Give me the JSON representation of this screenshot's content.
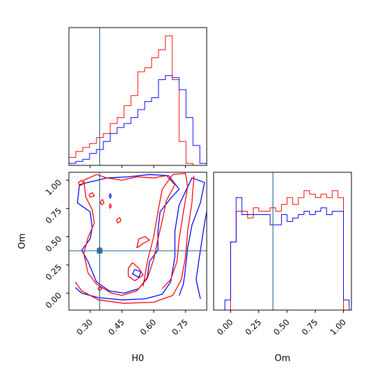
{
  "chart_data": {
    "type": "corner",
    "colors": {
      "red": "#ff0000",
      "blue": "#0000ff",
      "truth": "#2d6e9a",
      "axes": "#000000"
    },
    "axes_labels": {
      "x_bottom_left": "H0",
      "x_bottom_right": "Om",
      "y_middle_left": "Om"
    },
    "truths": {
      "H0": 0.345,
      "Om": 0.375
    },
    "ranges": {
      "H0": [
        0.2,
        0.85
      ],
      "Om": [
        -0.15,
        1.07
      ]
    },
    "ticks": {
      "H0": [
        0.3,
        0.45,
        0.6,
        0.75
      ],
      "H0_labels": [
        "0.30",
        "0.45",
        "0.60",
        "0.75"
      ],
      "Om": [
        0.0,
        0.25,
        0.5,
        0.75,
        1.0
      ],
      "Om_labels": [
        "0.00",
        "0.25",
        "0.50",
        "0.75",
        "1.00"
      ]
    },
    "hist_H0": {
      "edges": [
        0.2,
        0.2325,
        0.265,
        0.2975,
        0.33,
        0.3625,
        0.395,
        0.4275,
        0.46,
        0.4925,
        0.525,
        0.5575,
        0.59,
        0.6225,
        0.655,
        0.6875,
        0.72,
        0.7525,
        0.785,
        0.8175,
        0.85
      ],
      "series": [
        {
          "color": "red",
          "values": [
            4,
            7,
            9,
            11,
            14,
            16,
            21,
            24,
            30,
            35,
            47,
            49,
            54,
            58,
            65,
            43,
            12,
            1,
            0,
            0
          ]
        },
        {
          "color": "blue",
          "values": [
            1,
            2,
            3,
            6,
            8,
            12,
            16,
            19,
            21,
            24,
            28,
            32,
            34,
            43,
            45,
            44,
            38,
            24,
            10,
            1
          ]
        }
      ]
    },
    "hist_Om": {
      "edges": [
        -0.05,
        0.0,
        0.05,
        0.1,
        0.15,
        0.2,
        0.25,
        0.3,
        0.35,
        0.4,
        0.45,
        0.5,
        0.55,
        0.6,
        0.65,
        0.7,
        0.75,
        0.8,
        0.85,
        0.9,
        0.95,
        1.0,
        1.05
      ],
      "series": [
        {
          "color": "red",
          "values": [
            0,
            20,
            29,
            29,
            27,
            30,
            29,
            29,
            30,
            29,
            31,
            33,
            31,
            33,
            35,
            34,
            33,
            34,
            33,
            35,
            33,
            0
          ]
        },
        {
          "color": "blue",
          "values": [
            3,
            20,
            33,
            28,
            28,
            28,
            28,
            28,
            25,
            25,
            28,
            26,
            27,
            28,
            29,
            28,
            29,
            30,
            28,
            29,
            29,
            3
          ]
        }
      ]
    },
    "contours": {
      "red": [
        [
          [
            0.38,
            1.02
          ],
          [
            0.33,
            1.05
          ],
          [
            0.27,
            1.0
          ],
          [
            0.28,
            0.85
          ],
          [
            0.31,
            0.74
          ],
          [
            0.32,
            0.62
          ],
          [
            0.29,
            0.49
          ],
          [
            0.27,
            0.35
          ],
          [
            0.29,
            0.18
          ],
          [
            0.33,
            0.08
          ],
          [
            0.4,
            0.0
          ],
          [
            0.45,
            -0.02
          ],
          [
            0.52,
            0.02
          ],
          [
            0.57,
            0.13
          ],
          [
            0.6,
            0.3
          ],
          [
            0.62,
            0.48
          ],
          [
            0.64,
            0.64
          ],
          [
            0.66,
            0.82
          ],
          [
            0.7,
            0.96
          ],
          [
            0.66,
            1.04
          ],
          [
            0.6,
            1.02
          ],
          [
            0.52,
            1.03
          ],
          [
            0.45,
            1.0
          ],
          [
            0.38,
            1.02
          ]
        ],
        [
          [
            0.55,
            0.06
          ],
          [
            0.57,
            0.28
          ],
          [
            0.6,
            0.5
          ],
          [
            0.62,
            0.72
          ],
          [
            0.64,
            0.92
          ],
          [
            0.69,
            1.05
          ],
          [
            0.75,
            1.06
          ],
          [
            0.76,
            0.94
          ],
          [
            0.74,
            0.72
          ],
          [
            0.72,
            0.48
          ],
          [
            0.71,
            0.28
          ],
          [
            0.68,
            0.12
          ],
          [
            0.64,
            0.04
          ]
        ],
        [
          [
            0.23,
            0.1
          ],
          [
            0.26,
            0.02
          ],
          [
            0.34,
            -0.06
          ],
          [
            0.46,
            -0.09
          ],
          [
            0.6,
            -0.08
          ],
          [
            0.69,
            -0.02
          ],
          [
            0.73,
            0.12
          ],
          [
            0.75,
            0.32
          ],
          [
            0.76,
            0.55
          ],
          [
            0.78,
            0.8
          ],
          [
            0.79,
            1.04
          ]
        ],
        [
          [
            0.52,
            0.4
          ],
          [
            0.55,
            0.44
          ],
          [
            0.58,
            0.47
          ],
          [
            0.56,
            0.5
          ],
          [
            0.53,
            0.48
          ],
          [
            0.52,
            0.4
          ]
        ],
        [
          [
            0.5,
            0.27
          ],
          [
            0.53,
            0.22
          ],
          [
            0.55,
            0.16
          ],
          [
            0.51,
            0.11
          ],
          [
            0.48,
            0.15
          ],
          [
            0.48,
            0.22
          ],
          [
            0.5,
            0.27
          ]
        ],
        [
          [
            0.43,
            0.62
          ],
          [
            0.445,
            0.64
          ],
          [
            0.44,
            0.67
          ],
          [
            0.425,
            0.65
          ],
          [
            0.43,
            0.62
          ]
        ],
        [
          [
            0.355,
            0.78
          ],
          [
            0.365,
            0.8
          ],
          [
            0.358,
            0.83
          ],
          [
            0.348,
            0.8
          ],
          [
            0.355,
            0.78
          ]
        ],
        [
          [
            0.3,
            0.85
          ],
          [
            0.32,
            0.86
          ],
          [
            0.31,
            0.89
          ],
          [
            0.295,
            0.87
          ],
          [
            0.3,
            0.85
          ]
        ],
        [
          [
            0.25,
            0.95
          ],
          [
            0.27,
            0.97
          ],
          [
            0.26,
            1.0
          ],
          [
            0.245,
            0.98
          ],
          [
            0.25,
            0.95
          ]
        ],
        [
          [
            0.345,
            0.02
          ],
          [
            0.355,
            0.04
          ],
          [
            0.345,
            0.06
          ],
          [
            0.337,
            0.04
          ],
          [
            0.345,
            0.02
          ]
        ],
        [
          [
            0.345,
            0.37
          ],
          [
            0.352,
            0.39
          ],
          [
            0.345,
            0.41
          ],
          [
            0.338,
            0.39
          ],
          [
            0.345,
            0.37
          ]
        ],
        [
          [
            0.395,
            0.75
          ],
          [
            0.4,
            0.77
          ],
          [
            0.395,
            0.79
          ],
          [
            0.39,
            0.77
          ],
          [
            0.395,
            0.75
          ]
        ]
      ],
      "blue": [
        [
          [
            0.29,
            0.98
          ],
          [
            0.25,
            0.96
          ],
          [
            0.24,
            0.8
          ],
          [
            0.3,
            0.72
          ],
          [
            0.31,
            0.58
          ],
          [
            0.3,
            0.48
          ],
          [
            0.26,
            0.38
          ],
          [
            0.29,
            0.28
          ],
          [
            0.33,
            0.1
          ],
          [
            0.39,
            0.02
          ],
          [
            0.46,
            0.0
          ],
          [
            0.53,
            0.04
          ],
          [
            0.57,
            0.14
          ],
          [
            0.58,
            0.28
          ],
          [
            0.62,
            0.38
          ],
          [
            0.62,
            0.55
          ],
          [
            0.63,
            0.72
          ],
          [
            0.68,
            0.84
          ],
          [
            0.72,
            0.92
          ],
          [
            0.67,
            1.04
          ],
          [
            0.58,
            1.05
          ],
          [
            0.48,
            1.03
          ],
          [
            0.38,
            1.02
          ],
          [
            0.29,
            0.98
          ]
        ],
        [
          [
            0.23,
            0.05
          ],
          [
            0.26,
            0.0
          ],
          [
            0.34,
            -0.04
          ],
          [
            0.45,
            -0.06
          ],
          [
            0.56,
            -0.05
          ],
          [
            0.64,
            -0.01
          ],
          [
            0.68,
            0.1
          ],
          [
            0.7,
            0.32
          ],
          [
            0.7,
            0.55
          ],
          [
            0.72,
            0.78
          ],
          [
            0.78,
            1.02
          ],
          [
            0.84,
            0.98
          ],
          [
            0.82,
            0.8
          ],
          [
            0.78,
            0.6
          ],
          [
            0.76,
            0.4
          ],
          [
            0.75,
            0.22
          ],
          [
            0.74,
            0.08
          ],
          [
            0.72,
            -0.02
          ]
        ],
        [
          [
            0.82,
            -0.05
          ],
          [
            0.8,
            0.12
          ],
          [
            0.82,
            0.38
          ],
          [
            0.84,
            0.62
          ],
          [
            0.86,
            0.82
          ]
        ],
        [
          [
            0.51,
            0.21
          ],
          [
            0.54,
            0.19
          ],
          [
            0.53,
            0.14
          ],
          [
            0.5,
            0.17
          ],
          [
            0.51,
            0.21
          ]
        ],
        [
          [
            0.395,
            0.84
          ],
          [
            0.4,
            0.86
          ],
          [
            0.395,
            0.88
          ],
          [
            0.39,
            0.86
          ],
          [
            0.395,
            0.84
          ]
        ]
      ]
    }
  }
}
